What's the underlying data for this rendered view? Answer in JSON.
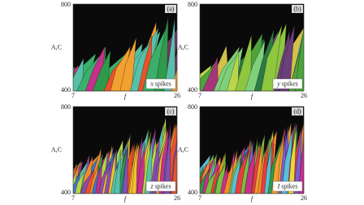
{
  "panels": [
    {
      "label": "(a)",
      "legend_var": "x",
      "legend_text": "spikes",
      "y_label": "A,C",
      "x_label": "f",
      "y_ticks": [
        800,
        400
      ],
      "x_ticks": [
        7,
        26
      ]
    },
    {
      "label": "(b)",
      "legend_var": "y",
      "legend_text": "spikes",
      "y_label": "A,C",
      "x_label": "f",
      "y_ticks": [
        800,
        400
      ],
      "x_ticks": [
        7,
        26
      ]
    },
    {
      "label": "(c)",
      "legend_var": "z",
      "legend_text": "spikes",
      "y_label": "A,C",
      "x_label": "f",
      "y_ticks": [
        800,
        400
      ],
      "x_ticks": [
        7,
        26
      ]
    },
    {
      "label": "(d)",
      "legend_var": "I",
      "legend_text": "spikes",
      "y_label": "A,C",
      "x_label": "f",
      "y_ticks": [
        800,
        400
      ],
      "x_ticks": [
        7,
        26
      ]
    }
  ]
}
